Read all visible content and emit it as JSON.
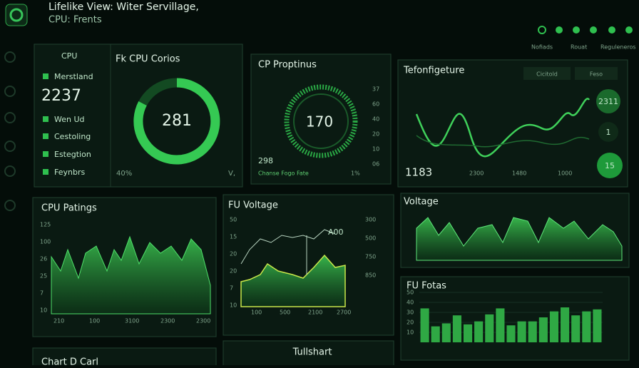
{
  "header": {
    "title": "Lifelike View: Witer Servillage,",
    "subtitle": "CPU: Frents"
  },
  "nav": [
    "Nofiads",
    "Rouat",
    "Reguleneros"
  ],
  "cpu_panel": {
    "side_title": "CPU",
    "title": "Fk CPU Corios",
    "items": [
      "Merstland",
      "2237",
      "Wen Ud",
      "Cestoling",
      "Estegtion",
      "Feynbrs"
    ],
    "ring_value": "281",
    "footer_left": "40%",
    "footer_right": "V,"
  },
  "props_panel": {
    "title": "CP Proptinus",
    "ring_value": "170",
    "left_value": "298",
    "footer": "Chanse Fogo Fate",
    "footer_right": "1%",
    "scale": [
      "37",
      "60",
      "40",
      "20",
      "10",
      "06"
    ]
  },
  "temp_panel": {
    "title": "Tefonfigeture",
    "tabs": [
      "Cicitold",
      "Feso"
    ],
    "value": "1183",
    "x_labels": [
      "2300",
      "1480",
      "1000"
    ],
    "badges": [
      "2311",
      "1",
      "15"
    ]
  },
  "ratings_panel": {
    "title": "CPU Patings",
    "y_labels": [
      "125",
      "100",
      "26",
      "25",
      "7",
      "10"
    ],
    "x_labels": [
      "210",
      "100",
      "3100",
      "2300",
      "2300"
    ]
  },
  "voltage_chart": {
    "title": "FU Voltage",
    "marker": "A00",
    "y_labels": [
      "50",
      "15",
      "20",
      "20",
      "7",
      "10"
    ],
    "x_labels": [
      "100",
      "500",
      "2100",
      "2700"
    ],
    "right_labels": [
      "300",
      "500",
      "750",
      "850"
    ]
  },
  "voltage_panel": {
    "title": "Voltage"
  },
  "bars_panel": {
    "title": "FU Fotas",
    "ylim": [
      0,
      50
    ],
    "yticks": [
      10,
      20,
      30,
      40,
      50
    ],
    "values": [
      34,
      16,
      19,
      27,
      18,
      21,
      28,
      34,
      17,
      21,
      21,
      25,
      31,
      35,
      27,
      31,
      33
    ],
    "color": "#2fa844"
  },
  "bottom": {
    "left": "Chart D Carl",
    "right": "Tullshart"
  }
}
